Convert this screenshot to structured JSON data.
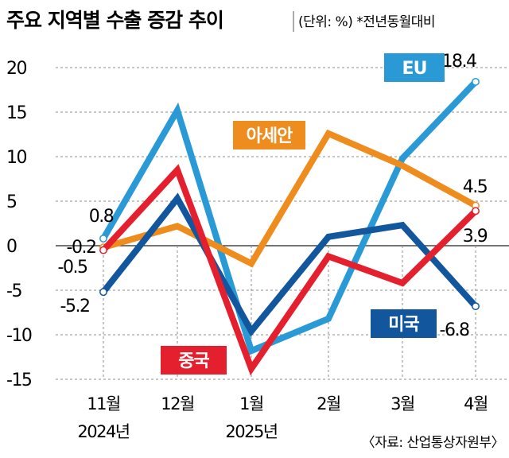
{
  "chart_data": {
    "type": "line",
    "title": "주요 지역별 수출 증감 추이",
    "subtitle": "(단위: %) *전년동월대비",
    "categories": [
      "11월",
      "12월",
      "1월",
      "2월",
      "3월",
      "4월"
    ],
    "year_labels": [
      "2024년",
      "",
      "2025년",
      "",
      "",
      ""
    ],
    "ylim": [
      -15,
      20
    ],
    "yticks": [
      20,
      15,
      10,
      5,
      0,
      -5,
      -10,
      -15
    ],
    "series": [
      {
        "name": "EU",
        "color": "#2a9ad6",
        "values": [
          0.8,
          15.2,
          -11.8,
          -8.2,
          9.8,
          18.4
        ]
      },
      {
        "name": "아세안",
        "color": "#ef8c1e",
        "values": [
          -0.2,
          2.2,
          -2.0,
          12.6,
          9.0,
          4.5
        ]
      },
      {
        "name": "미국",
        "color": "#12569e",
        "values": [
          -5.2,
          5.3,
          -9.6,
          1.0,
          2.3,
          -6.8
        ]
      },
      {
        "name": "중국",
        "color": "#e5202e",
        "values": [
          -0.5,
          8.5,
          -13.8,
          -1.2,
          -4.2,
          3.9
        ]
      }
    ],
    "data_labels": {
      "start": {
        "EU": "0.8",
        "아세안": "-0.2",
        "중국": "-0.5",
        "미국": "-5.2"
      },
      "end": {
        "EU": "18.4",
        "아세안": "4.5",
        "중국": "3.9",
        "미국": "-6.8"
      }
    },
    "source": "〈자료: 산업통상자원부〉"
  }
}
